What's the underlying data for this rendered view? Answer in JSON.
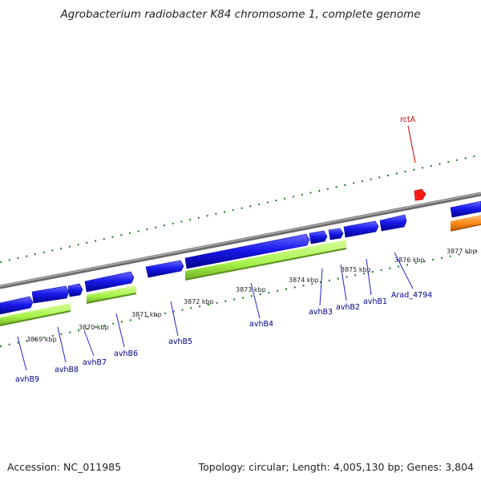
{
  "title": "Agrobacterium radiobacter K84 chromosome 1, complete genome",
  "footer": {
    "accession": "Accession: NC_011985",
    "summary": "Topology: circular; Length: 4,005,130 bp; Genes: 3,804"
  },
  "colors": {
    "backbone": "#8a8a8a",
    "cds": "#1a1aee",
    "gene_outline": "#0000aa",
    "operon": "#a6f34a",
    "other_feature": "#ff8c1a",
    "tick": "#1e7a1e",
    "rna_marker": "#ff1a1a"
  },
  "scale_ticks": [
    "3869 kbp",
    "3870 kbp",
    "3871 kbp",
    "3872 kbp",
    "3873 kbp",
    "3874 kbp",
    "3875 kbp",
    "3876 kbp",
    "3877 kbp"
  ],
  "gene_labels": [
    "avhB9",
    "avhB8",
    "avhB7",
    "avhB6",
    "avhB5",
    "avhB4",
    "avhB3",
    "avhB2",
    "avhB1",
    "Arad_4794",
    "rctA"
  ]
}
